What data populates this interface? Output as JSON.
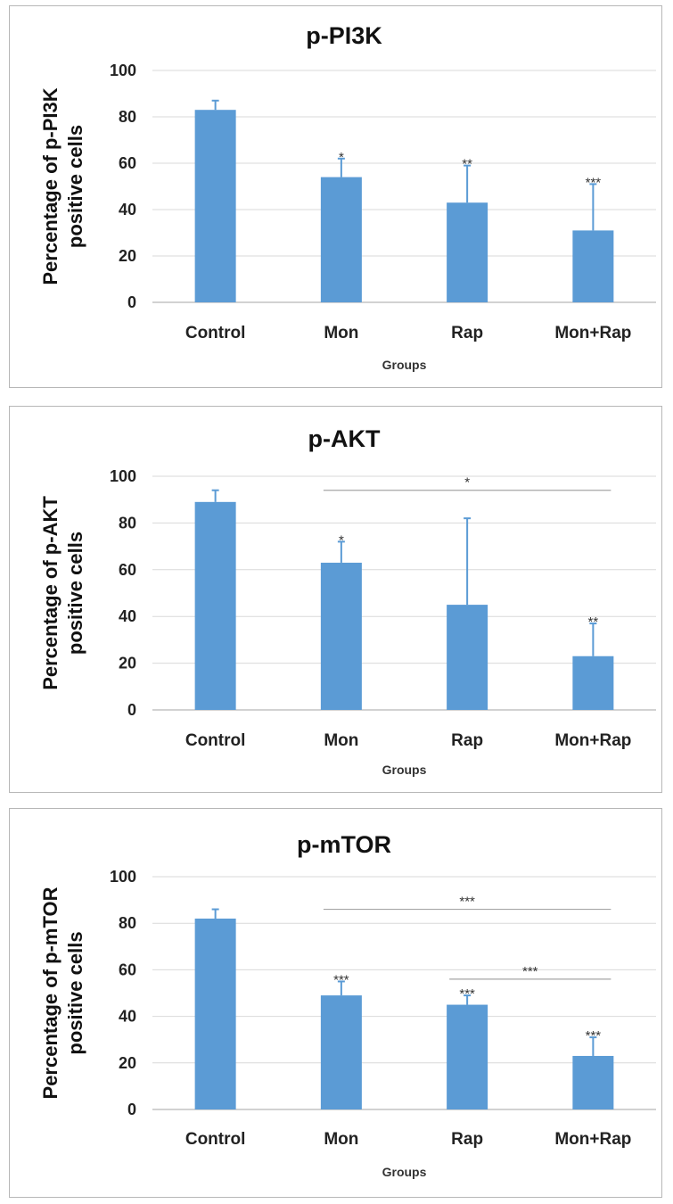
{
  "chart_data": [
    {
      "type": "bar",
      "title": "p-PI3K",
      "ylabel_lines": [
        "Percentage of p-PI3K",
        "positive cells"
      ],
      "xlabel": "Groups",
      "categories": [
        "Control",
        "Mon",
        "Rap",
        "Mon+Rap"
      ],
      "values": [
        83,
        54,
        43,
        31
      ],
      "error_upper": [
        4,
        8,
        16,
        20
      ],
      "significance": [
        "",
        "*",
        "**",
        "***"
      ],
      "brackets": [],
      "ylim": [
        0,
        100
      ],
      "yticks": [
        0,
        20,
        40,
        60,
        80,
        100
      ],
      "grid": true,
      "bar_color": "#5b9bd5"
    },
    {
      "type": "bar",
      "title": "p-AKT",
      "ylabel_lines": [
        "Percentage of p-AKT",
        "positive cells"
      ],
      "xlabel": "Groups",
      "categories": [
        "Control",
        "Mon",
        "Rap",
        "Mon+Rap"
      ],
      "values": [
        89,
        63,
        45,
        23
      ],
      "error_upper": [
        5,
        9,
        37,
        14
      ],
      "significance": [
        "",
        "*",
        "",
        "**"
      ],
      "brackets": [
        {
          "from": 1,
          "to": 3,
          "label": "*",
          "y": 94
        }
      ],
      "ylim": [
        0,
        100
      ],
      "yticks": [
        0,
        20,
        40,
        60,
        80,
        100
      ],
      "grid": true,
      "bar_color": "#5b9bd5"
    },
    {
      "type": "bar",
      "title": "p-mTOR",
      "ylabel_lines": [
        "Percentage of p-mTOR",
        "positive cells"
      ],
      "xlabel": "Groups",
      "categories": [
        "Control",
        "Mon",
        "Rap",
        "Mon+Rap"
      ],
      "values": [
        82,
        49,
        45,
        23
      ],
      "error_upper": [
        4,
        6,
        4,
        8
      ],
      "significance": [
        "",
        "***",
        "***",
        "***"
      ],
      "brackets": [
        {
          "from": 1,
          "to": 3,
          "label": "***",
          "y": 86
        },
        {
          "from": 2,
          "to": 3,
          "label": "***",
          "y": 56
        }
      ],
      "ylim": [
        0,
        100
      ],
      "yticks": [
        0,
        20,
        40,
        60,
        80,
        100
      ],
      "grid": true,
      "bar_color": "#5b9bd5"
    }
  ]
}
